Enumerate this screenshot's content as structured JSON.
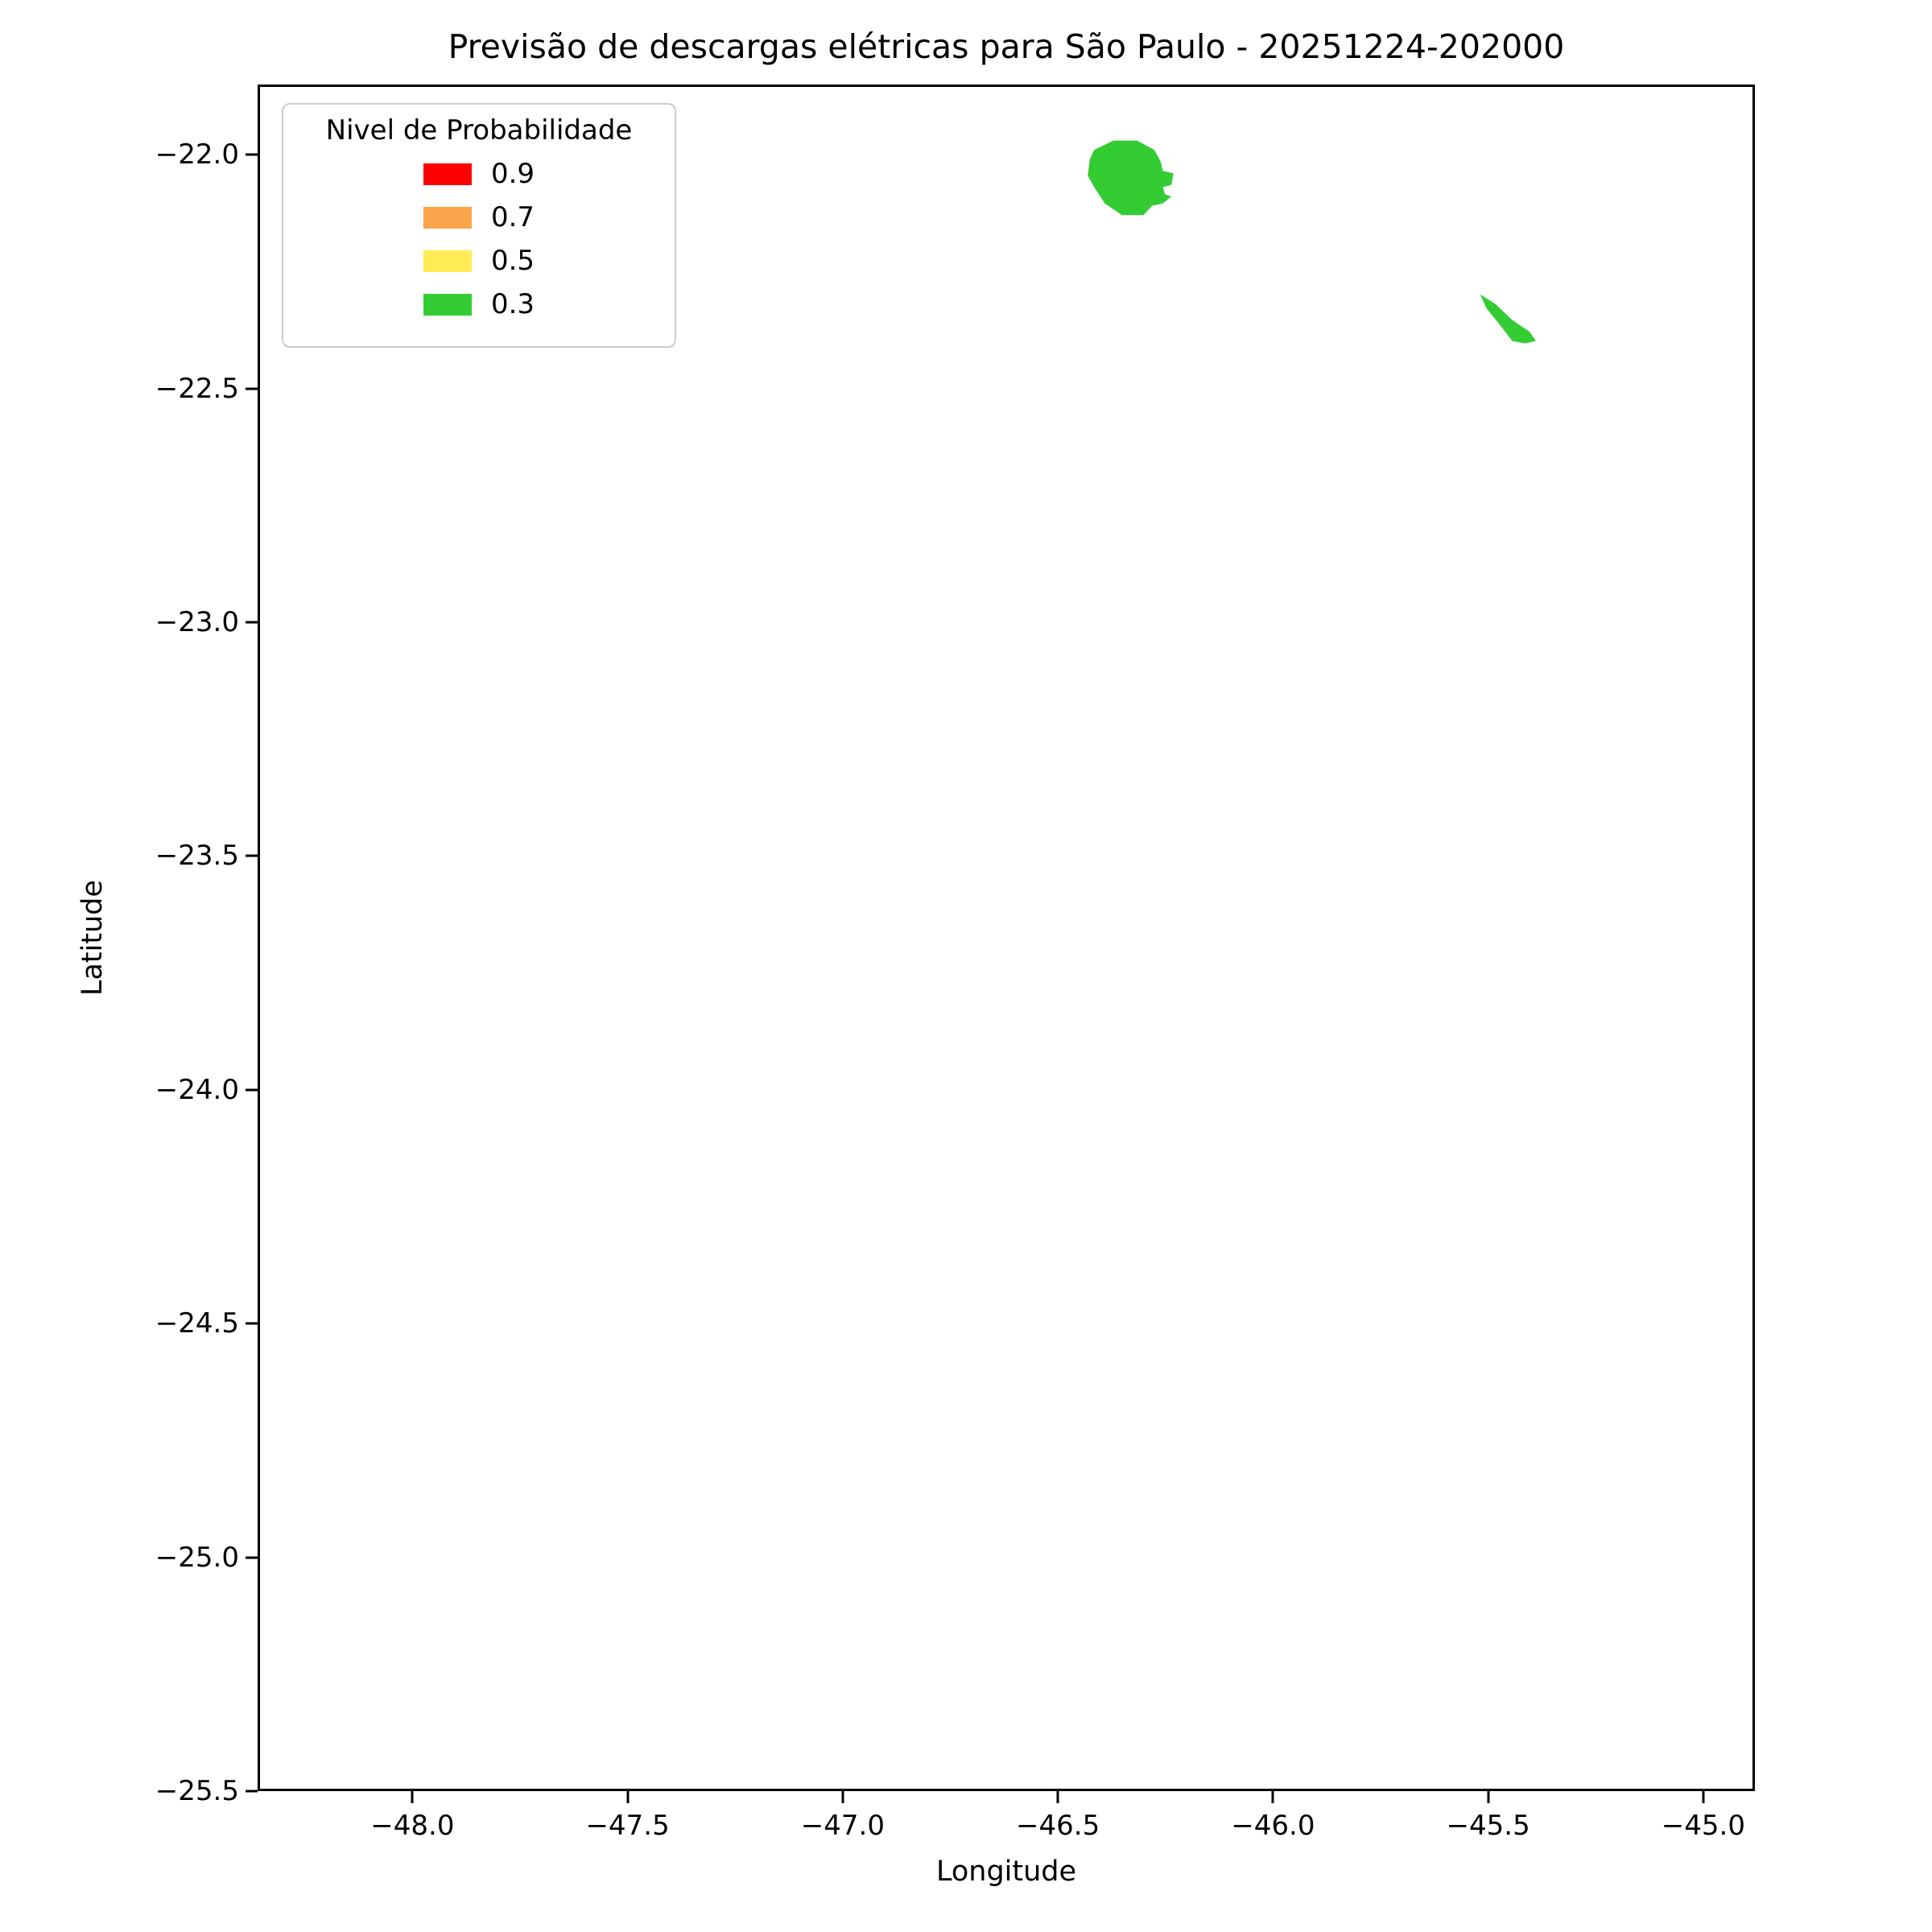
{
  "title": "Previsão de descargas elétricas para São Paulo - 20251224-202000",
  "axes": {
    "xlabel": "Longitude",
    "ylabel": "Latitude"
  },
  "legend": {
    "title": "Nivel de Probabilidade",
    "entries": [
      {
        "label": "0.9",
        "color": "#FF0000"
      },
      {
        "label": "0.7",
        "color": "#FBA44C"
      },
      {
        "label": "0.5",
        "color": "#FFEC54"
      },
      {
        "label": "0.3",
        "color": "#33CC33"
      }
    ]
  },
  "chart_data": {
    "type": "area",
    "title": "Previsão de descargas elétricas para São Paulo - 20251224-202000",
    "xlabel": "Longitude",
    "ylabel": "Latitude",
    "xlim": [
      -48.36,
      -44.88
    ],
    "ylim": [
      -25.5,
      -21.85
    ],
    "xticks": [
      -48.0,
      -47.5,
      -47.0,
      -46.5,
      -46.0,
      -45.5,
      -45.0
    ],
    "yticks": [
      -22.0,
      -22.5,
      -23.0,
      -23.5,
      -24.0,
      -24.5,
      -25.0,
      -25.5
    ],
    "grid": false,
    "legend_position": "upper-left",
    "series": [
      {
        "name": "0.3",
        "probability_level": 0.3,
        "color": "#33CC33",
        "polygons": [
          [
            [
              -46.425,
              -22.005
            ],
            [
              -46.415,
              -21.985
            ],
            [
              -46.37,
              -21.965
            ],
            [
              -46.315,
              -21.965
            ],
            [
              -46.275,
              -21.985
            ],
            [
              -46.26,
              -22.01
            ],
            [
              -46.255,
              -22.03
            ],
            [
              -46.23,
              -22.035
            ],
            [
              -46.235,
              -22.06
            ],
            [
              -46.255,
              -22.065
            ],
            [
              -46.25,
              -22.08
            ],
            [
              -46.235,
              -22.085
            ],
            [
              -46.255,
              -22.1
            ],
            [
              -46.28,
              -22.105
            ],
            [
              -46.3,
              -22.125
            ],
            [
              -46.35,
              -22.125
            ],
            [
              -46.39,
              -22.1
            ],
            [
              -46.415,
              -22.065
            ],
            [
              -46.43,
              -22.04
            ]
          ],
          [
            [
              -45.515,
              -22.295
            ],
            [
              -45.48,
              -22.315
            ],
            [
              -45.44,
              -22.35
            ],
            [
              -45.4,
              -22.375
            ],
            [
              -45.385,
              -22.395
            ],
            [
              -45.41,
              -22.4
            ],
            [
              -45.44,
              -22.395
            ],
            [
              -45.465,
              -22.365
            ],
            [
              -45.5,
              -22.325
            ]
          ]
        ]
      }
    ]
  }
}
